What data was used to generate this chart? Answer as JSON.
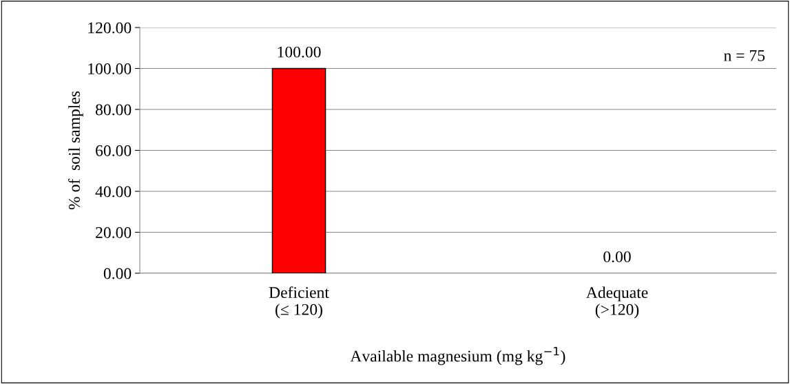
{
  "chart_data": {
    "type": "bar",
    "categories": [
      "Deficient\n(≤ 120)",
      "Adequate\n(>120)"
    ],
    "values": [
      100,
      0
    ],
    "value_labels": [
      "100.00",
      "0.00"
    ],
    "color": "#ff0000",
    "ylabel": "% of  soil samples",
    "xlabel": "Available magnesium (mg kg$^{−1}$)",
    "ylim": [
      0,
      120
    ],
    "yticks": [
      {
        "value": 0,
        "label": "0.00"
      },
      {
        "value": 20,
        "label": "20.00"
      },
      {
        "value": 40,
        "label": "40.00"
      },
      {
        "value": 60,
        "label": "60.00"
      },
      {
        "value": 80,
        "label": "80.00"
      },
      {
        "value": 100,
        "label": "100.00"
      },
      {
        "value": 120,
        "label": "120.00"
      }
    ],
    "grid": "y",
    "annotations": [
      "n = 75"
    ]
  }
}
